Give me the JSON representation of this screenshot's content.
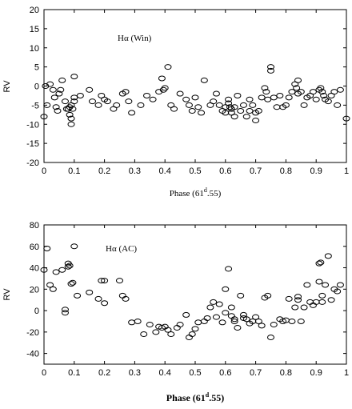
{
  "chart_data": [
    {
      "type": "scatter",
      "ylabel": "RV",
      "xlabel_prefix": "Phase (61",
      "xlabel_sup": "d",
      "xlabel_suffix": ".55)",
      "annotation": "Hα (Win)",
      "xlim": [
        0,
        1
      ],
      "ylim": [
        -20,
        20
      ],
      "xticks": [
        "0",
        "0.1",
        "0.2",
        "0.3",
        "0.4",
        "0.5",
        "0.6",
        "0.7",
        "0.8",
        "0.9",
        "1"
      ],
      "yticks": [
        "20",
        "15",
        "10",
        "5",
        "0",
        "-5",
        "-10",
        "-15",
        "-20"
      ],
      "grid": false,
      "points": [
        [
          0.0,
          -8
        ],
        [
          0.005,
          0
        ],
        [
          0.01,
          -5
        ],
        [
          0.02,
          0.5
        ],
        [
          0.03,
          -1
        ],
        [
          0.035,
          -3
        ],
        [
          0.04,
          -5.5
        ],
        [
          0.045,
          -6.5
        ],
        [
          0.05,
          -2
        ],
        [
          0.055,
          -1
        ],
        [
          0.06,
          1.5
        ],
        [
          0.07,
          -4
        ],
        [
          0.075,
          -6
        ],
        [
          0.08,
          -6
        ],
        [
          0.085,
          -5.5
        ],
        [
          0.085,
          -7.5
        ],
        [
          0.09,
          -8.5
        ],
        [
          0.09,
          -10
        ],
        [
          0.09,
          -5
        ],
        [
          0.095,
          -6
        ],
        [
          0.1,
          -3
        ],
        [
          0.1,
          -4
        ],
        [
          0.1,
          2.5
        ],
        [
          0.12,
          -2.5
        ],
        [
          0.15,
          -1
        ],
        [
          0.16,
          -4
        ],
        [
          0.18,
          -5
        ],
        [
          0.19,
          -2.5
        ],
        [
          0.2,
          -3.5
        ],
        [
          0.21,
          -4
        ],
        [
          0.23,
          -6
        ],
        [
          0.24,
          -5
        ],
        [
          0.26,
          -2
        ],
        [
          0.27,
          -1.5
        ],
        [
          0.28,
          -4
        ],
        [
          0.29,
          -7
        ],
        [
          0.32,
          -5
        ],
        [
          0.34,
          -2.5
        ],
        [
          0.36,
          -3.5
        ],
        [
          0.38,
          -1.5
        ],
        [
          0.39,
          2
        ],
        [
          0.395,
          -1
        ],
        [
          0.4,
          -0.5
        ],
        [
          0.41,
          5
        ],
        [
          0.42,
          -5
        ],
        [
          0.43,
          -6
        ],
        [
          0.45,
          -2
        ],
        [
          0.47,
          -3.5
        ],
        [
          0.48,
          -5
        ],
        [
          0.49,
          -6.5
        ],
        [
          0.5,
          -3
        ],
        [
          0.51,
          -5.5
        ],
        [
          0.52,
          -7
        ],
        [
          0.53,
          1.5
        ],
        [
          0.55,
          -5
        ],
        [
          0.56,
          -4
        ],
        [
          0.57,
          -2
        ],
        [
          0.58,
          -5
        ],
        [
          0.59,
          -6.5
        ],
        [
          0.6,
          -7
        ],
        [
          0.6,
          -5.5
        ],
        [
          0.61,
          -4.5
        ],
        [
          0.61,
          -3.5
        ],
        [
          0.615,
          -5.5
        ],
        [
          0.62,
          -6
        ],
        [
          0.62,
          -7
        ],
        [
          0.63,
          -5.5
        ],
        [
          0.63,
          -8
        ],
        [
          0.64,
          -2.5
        ],
        [
          0.65,
          -6.5
        ],
        [
          0.66,
          -5
        ],
        [
          0.67,
          -8
        ],
        [
          0.68,
          -6.5
        ],
        [
          0.68,
          -3.5
        ],
        [
          0.69,
          -5
        ],
        [
          0.7,
          -7
        ],
        [
          0.7,
          -9
        ],
        [
          0.71,
          -6.5
        ],
        [
          0.72,
          -3
        ],
        [
          0.73,
          -0.5
        ],
        [
          0.735,
          -1.5
        ],
        [
          0.74,
          -3.5
        ],
        [
          0.75,
          4
        ],
        [
          0.75,
          5
        ],
        [
          0.76,
          -3
        ],
        [
          0.77,
          -5.5
        ],
        [
          0.78,
          -2.5
        ],
        [
          0.79,
          -5.5
        ],
        [
          0.8,
          -5
        ],
        [
          0.81,
          -3
        ],
        [
          0.82,
          -1.5
        ],
        [
          0.83,
          0.5
        ],
        [
          0.835,
          -0.5
        ],
        [
          0.84,
          1.5
        ],
        [
          0.84,
          -2
        ],
        [
          0.85,
          -1.5
        ],
        [
          0.86,
          -5
        ],
        [
          0.87,
          -3
        ],
        [
          0.88,
          -2.5
        ],
        [
          0.89,
          -1.5
        ],
        [
          0.9,
          -3.5
        ],
        [
          0.91,
          -1
        ],
        [
          0.915,
          -0.5
        ],
        [
          0.92,
          -1.5
        ],
        [
          0.925,
          -2.5
        ],
        [
          0.93,
          -3.5
        ],
        [
          0.94,
          -4
        ],
        [
          0.95,
          -2.5
        ],
        [
          0.96,
          -1.5
        ],
        [
          0.97,
          -5
        ],
        [
          0.98,
          -1
        ],
        [
          1.0,
          -8.5
        ]
      ]
    },
    {
      "type": "scatter",
      "ylabel": "RV",
      "xlabel_prefix": "Phase (61",
      "xlabel_sup": "d",
      "xlabel_suffix": ".55)",
      "annotation": "Hα (AC)",
      "xlim": [
        0,
        1
      ],
      "ylim": [
        -50,
        80
      ],
      "xticks": [
        "0",
        "0.1",
        "0.2",
        "0.3",
        "0.4",
        "0.5",
        "0.6",
        "0.7",
        "0.8",
        "0.9",
        "1"
      ],
      "yticks": [
        "80",
        "60",
        "40",
        "20",
        "0",
        "-20",
        "-40"
      ],
      "grid": false,
      "points": [
        [
          0.0,
          38
        ],
        [
          0.01,
          58
        ],
        [
          0.02,
          24
        ],
        [
          0.03,
          20
        ],
        [
          0.04,
          36
        ],
        [
          0.06,
          38
        ],
        [
          0.07,
          1
        ],
        [
          0.07,
          -2
        ],
        [
          0.08,
          41
        ],
        [
          0.08,
          44
        ],
        [
          0.085,
          42
        ],
        [
          0.09,
          25
        ],
        [
          0.095,
          26
        ],
        [
          0.1,
          60
        ],
        [
          0.11,
          14
        ],
        [
          0.15,
          17
        ],
        [
          0.18,
          11
        ],
        [
          0.19,
          28
        ],
        [
          0.2,
          28
        ],
        [
          0.2,
          7
        ],
        [
          0.25,
          28
        ],
        [
          0.26,
          14
        ],
        [
          0.27,
          11
        ],
        [
          0.29,
          -11
        ],
        [
          0.31,
          -10
        ],
        [
          0.33,
          -22
        ],
        [
          0.35,
          -13
        ],
        [
          0.37,
          -20
        ],
        [
          0.38,
          -15
        ],
        [
          0.39,
          -16
        ],
        [
          0.4,
          -15
        ],
        [
          0.41,
          -18
        ],
        [
          0.42,
          -22
        ],
        [
          0.44,
          -16
        ],
        [
          0.45,
          -13
        ],
        [
          0.47,
          -4
        ],
        [
          0.48,
          -25
        ],
        [
          0.49,
          -22
        ],
        [
          0.5,
          -17
        ],
        [
          0.51,
          -11
        ],
        [
          0.53,
          -10
        ],
        [
          0.54,
          -7
        ],
        [
          0.55,
          3
        ],
        [
          0.56,
          8
        ],
        [
          0.57,
          -6
        ],
        [
          0.58,
          6
        ],
        [
          0.59,
          -11
        ],
        [
          0.6,
          20
        ],
        [
          0.61,
          39
        ],
        [
          0.6,
          -2
        ],
        [
          0.62,
          3
        ],
        [
          0.62,
          -5
        ],
        [
          0.63,
          -8
        ],
        [
          0.63,
          -10
        ],
        [
          0.64,
          -16
        ],
        [
          0.65,
          14
        ],
        [
          0.66,
          -4
        ],
        [
          0.66,
          -7
        ],
        [
          0.67,
          -8
        ],
        [
          0.68,
          -12
        ],
        [
          0.69,
          -10
        ],
        [
          0.7,
          -6
        ],
        [
          0.71,
          -10
        ],
        [
          0.72,
          -14
        ],
        [
          0.73,
          12
        ],
        [
          0.74,
          14
        ],
        [
          0.75,
          -25
        ],
        [
          0.76,
          -13
        ],
        [
          0.78,
          -8
        ],
        [
          0.79,
          -10
        ],
        [
          0.8,
          -9
        ],
        [
          0.81,
          11
        ],
        [
          0.82,
          -10
        ],
        [
          0.83,
          3
        ],
        [
          0.84,
          10
        ],
        [
          0.84,
          13
        ],
        [
          0.85,
          -10
        ],
        [
          0.86,
          3
        ],
        [
          0.87,
          24
        ],
        [
          0.88,
          8
        ],
        [
          0.89,
          5
        ],
        [
          0.9,
          8
        ],
        [
          0.91,
          27
        ],
        [
          0.91,
          44
        ],
        [
          0.915,
          45
        ],
        [
          0.92,
          14
        ],
        [
          0.92,
          8
        ],
        [
          0.93,
          24
        ],
        [
          0.94,
          51
        ],
        [
          0.95,
          10
        ],
        [
          0.96,
          20
        ],
        [
          0.97,
          18
        ],
        [
          0.98,
          24
        ]
      ]
    }
  ]
}
